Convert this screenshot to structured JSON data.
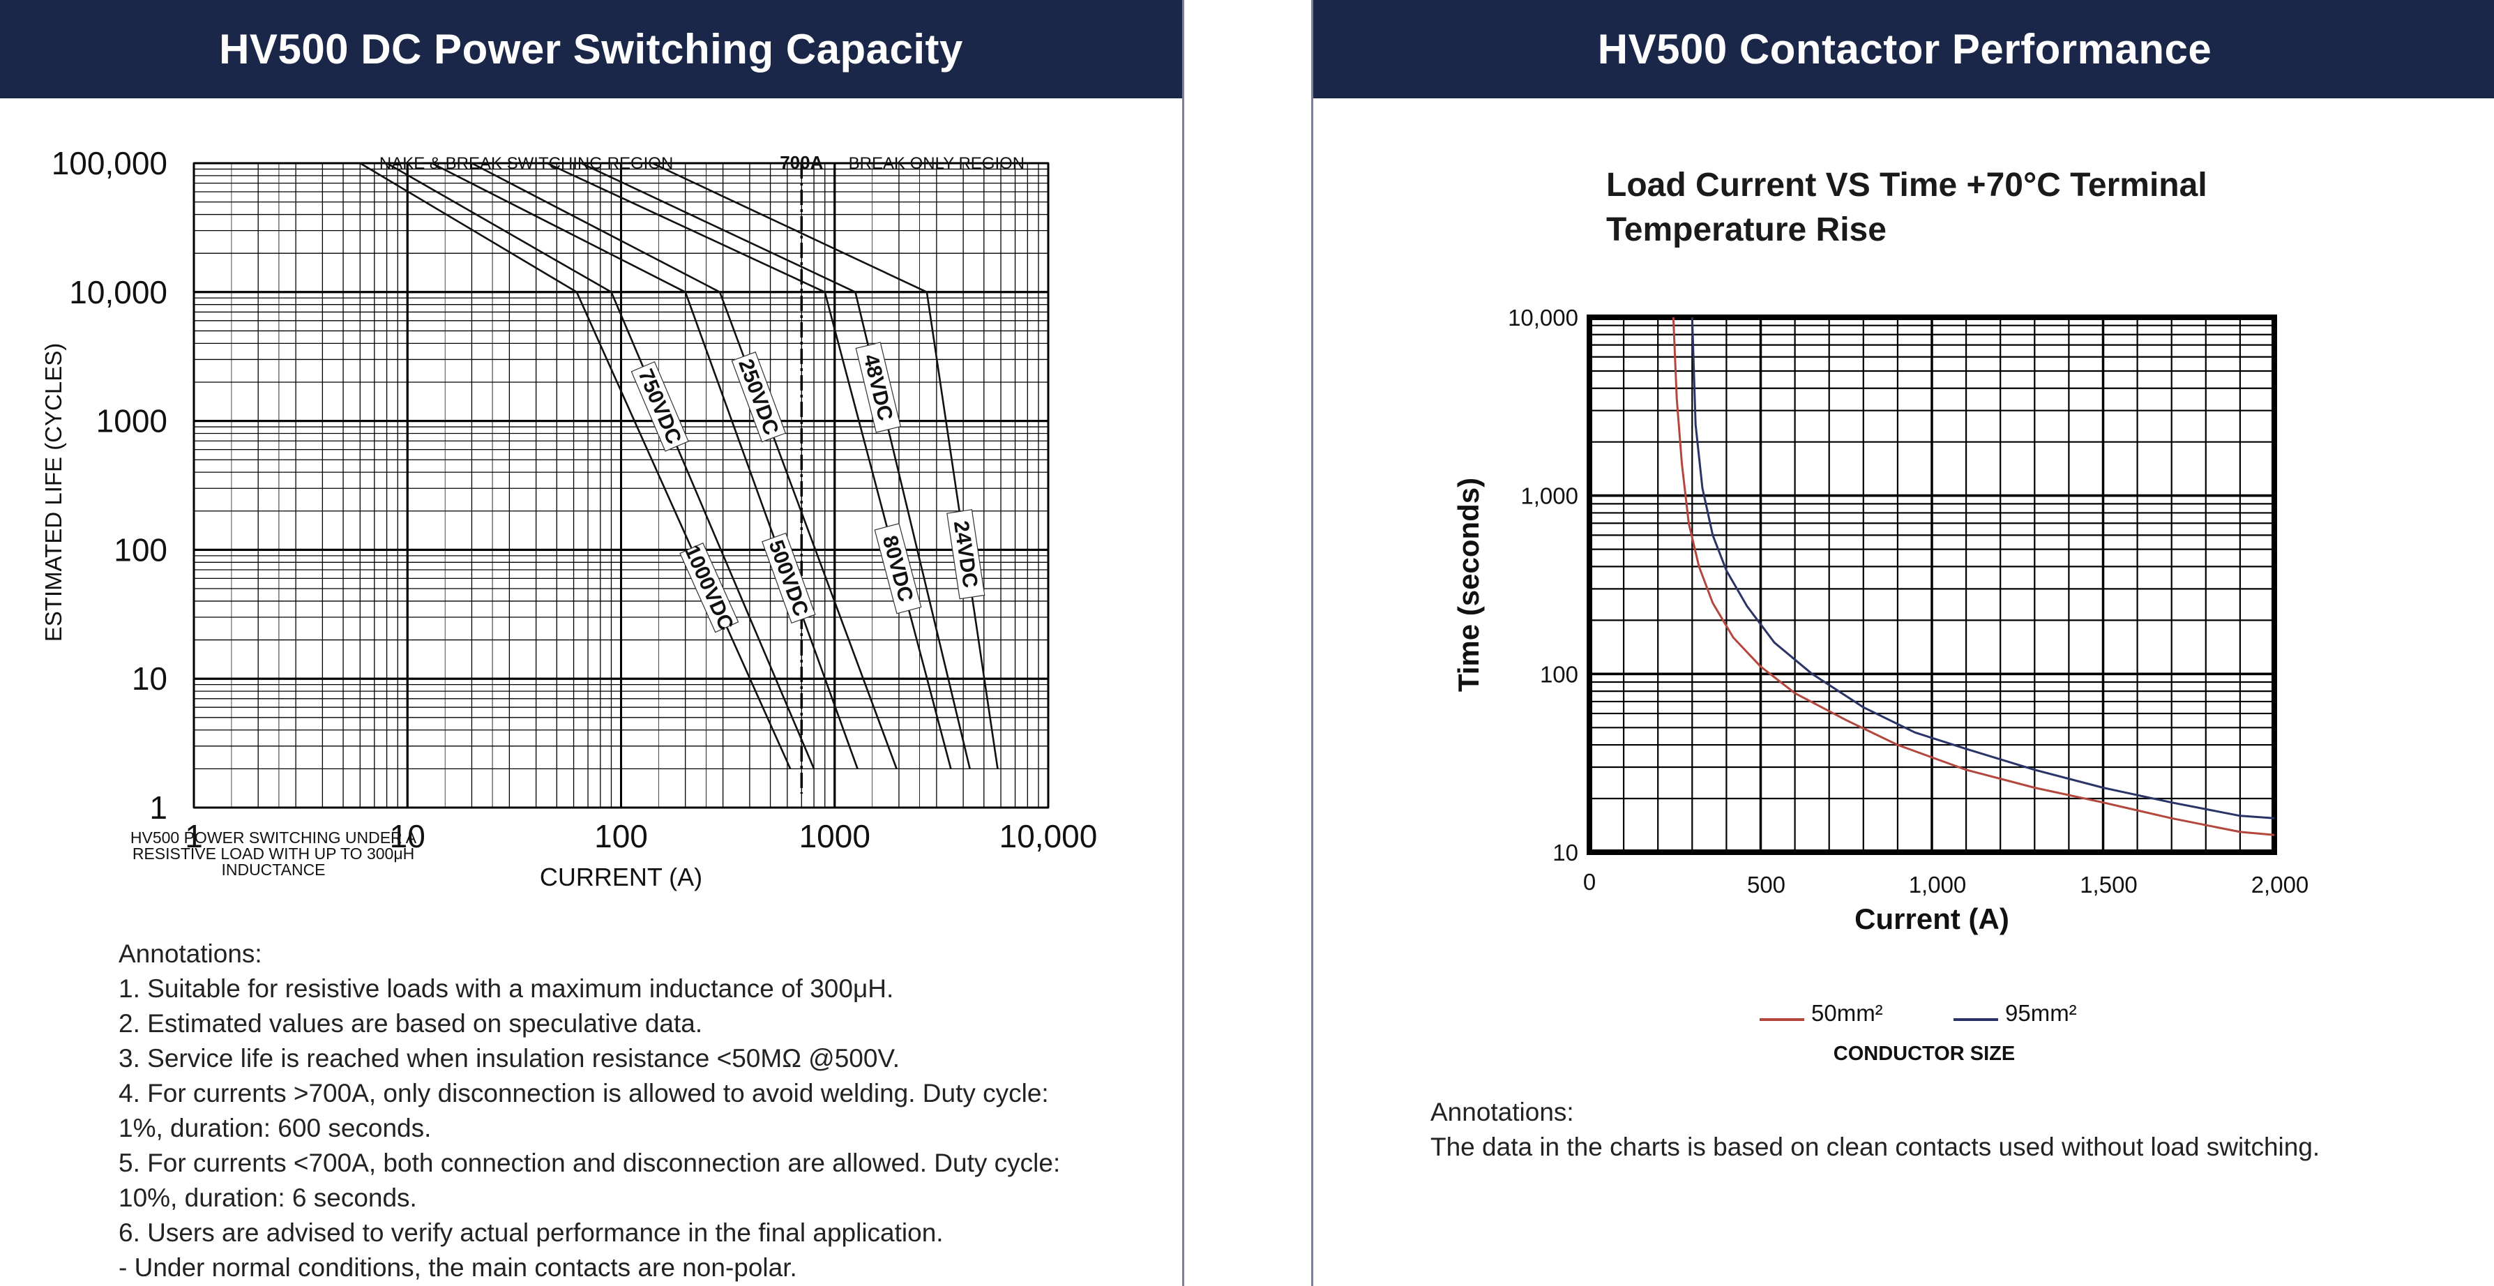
{
  "colors": {
    "header_bg": "#1b2748",
    "header_text": "#ffffff",
    "red_curve": "#b4473d",
    "blue_curve": "#2b3466",
    "grid": "#000000"
  },
  "left": {
    "header": "HV500 DC Power Switching Capacity",
    "annotations_title": "Annotations:",
    "annotations": [
      "1. Suitable for resistive loads with a maximum inductance of 300μH.",
      "2. Estimated values are based on speculative data.",
      "3. Service life is reached when insulation resistance <50MΩ @500V.",
      "4. For currents >700A, only disconnection is allowed to avoid welding. Duty cycle:",
      "1%, duration: 600 seconds.",
      "5. For currents <700A, both connection and disconnection are allowed. Duty cycle:",
      "10%, duration: 6 seconds.",
      "6. Users are advised to verify actual performance in the final application.",
      "- Under normal conditions, the main contacts are non-polar."
    ]
  },
  "right": {
    "header": "HV500 Contactor Performance",
    "annotations_title": "Annotations:",
    "annotations": [
      "The data in the charts is based on clean contacts used without load switching."
    ]
  },
  "chart_data": [
    {
      "type": "line",
      "scale": "log-log",
      "title": "",
      "xlabel": "CURRENT (A)",
      "ylabel": "ESTIMATED LIFE (CYCLES)",
      "xlim": [
        1,
        10000
      ],
      "ylim": [
        1,
        100000
      ],
      "x_ticks": [
        1,
        10,
        100,
        1000,
        10000
      ],
      "x_tick_labels": [
        "1",
        "10",
        "100",
        "1000",
        "10,000"
      ],
      "y_ticks": [
        1,
        10,
        100,
        1000,
        10000,
        100000
      ],
      "y_tick_labels": [
        "1",
        "10",
        "100",
        "1000",
        "10,000",
        "100,000"
      ],
      "grid": true,
      "region_labels": {
        "left": "NAKE & BREAK SWITCHING REGION",
        "divider": "700A",
        "right": "BREAK ONLY REGION"
      },
      "divider_x": 700,
      "footnote": [
        "HV500 POWER SWITCHING UNDER A",
        "RESISTIVE LOAD WITH UP TO 300μH",
        "INDUCTANCE"
      ],
      "series": [
        {
          "name": "1000VDC",
          "points": [
            [
              6,
              100000
            ],
            [
              62,
              10000
            ],
            [
              620,
              2
            ]
          ]
        },
        {
          "name": "750VDC",
          "points": [
            [
              8,
              100000
            ],
            [
              90,
              10000
            ],
            [
              800,
              2
            ]
          ]
        },
        {
          "name": "500VDC",
          "points": [
            [
              13,
              100000
            ],
            [
              200,
              10000
            ],
            [
              1280,
              2
            ]
          ]
        },
        {
          "name": "250VDC",
          "points": [
            [
              20,
              100000
            ],
            [
              290,
              10000
            ],
            [
              1950,
              2
            ]
          ]
        },
        {
          "name": "80VDC",
          "points": [
            [
              45,
              100000
            ],
            [
              900,
              10000
            ],
            [
              3500,
              2
            ]
          ]
        },
        {
          "name": "48VDC",
          "points": [
            [
              65,
              100000
            ],
            [
              1250,
              10000
            ],
            [
              4300,
              2
            ]
          ]
        },
        {
          "name": "24VDC",
          "points": [
            [
              140,
              100000
            ],
            [
              2700,
              10000
            ],
            [
              5800,
              2
            ]
          ]
        }
      ]
    },
    {
      "type": "line",
      "scale": "linear-x log-y",
      "title": "Load Current VS Time +70°C Terminal Temperature Rise",
      "title_lines": [
        "Load Current VS Time +70°C Terminal",
        "Temperature Rise"
      ],
      "xlabel": "Current (A)",
      "ylabel": "Time (seconds)",
      "xlim": [
        0,
        2000
      ],
      "ylim": [
        10,
        10000
      ],
      "x_ticks": [
        0,
        500,
        1000,
        1500,
        2000
      ],
      "x_tick_labels": [
        "0",
        "500",
        "1,000",
        "1,500",
        "2,000"
      ],
      "y_ticks": [
        10,
        100,
        1000,
        10000
      ],
      "y_tick_labels": [
        "10",
        "100",
        "1,000",
        "10,000"
      ],
      "grid": true,
      "legend_title": "CONDUCTOR SIZE",
      "legend_position": "bottom-center",
      "series": [
        {
          "name": "50mm²",
          "color": "#b4473d",
          "x": [
            245,
            255,
            270,
            290,
            320,
            360,
            420,
            500,
            600,
            750,
            900,
            1100,
            1300,
            1500,
            1700,
            1900,
            2000
          ],
          "y": [
            10000,
            3500,
            1500,
            700,
            400,
            250,
            160,
            110,
            78,
            55,
            40,
            29,
            23,
            19,
            15.5,
            13,
            12.5
          ]
        },
        {
          "name": "95mm²",
          "color": "#2b3466",
          "x": [
            300,
            310,
            330,
            360,
            400,
            460,
            540,
            650,
            800,
            950,
            1100,
            1300,
            1500,
            1700,
            1900,
            2000
          ],
          "y": [
            10000,
            2500,
            1100,
            600,
            380,
            240,
            150,
            100,
            65,
            47,
            38,
            29,
            23,
            19,
            16,
            15.5
          ]
        }
      ]
    }
  ]
}
